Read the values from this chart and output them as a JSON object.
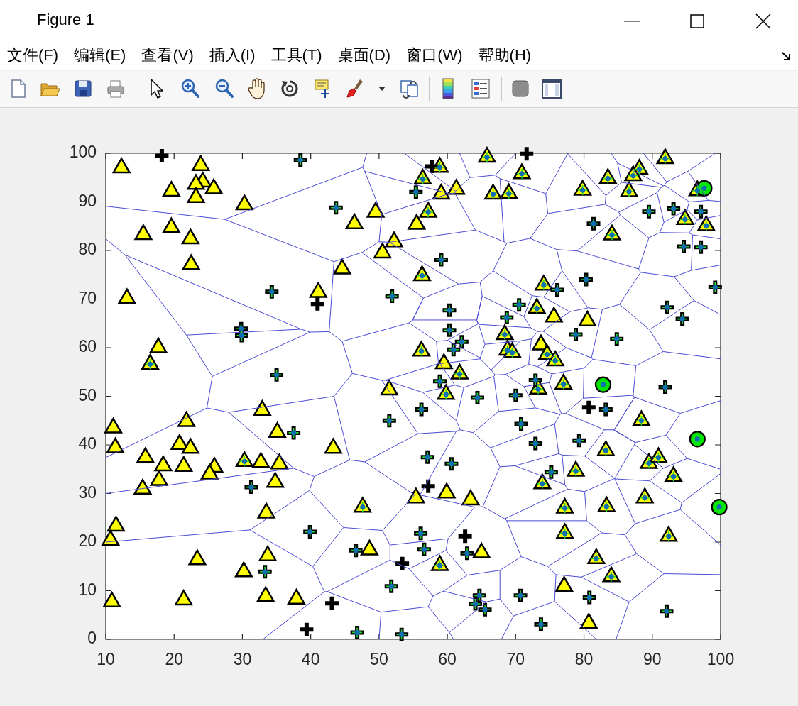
{
  "chart_data": {
    "type": "scatter",
    "annotations": [
      "Figure 1",
      "文件(F)",
      "编辑(E)",
      "查看(V)",
      "插入(I)",
      "工具(T)",
      "桌面(D)",
      "窗口(W)",
      "帮助(H)"
    ],
    "xlim": [
      10,
      100
    ],
    "xticks": [
      10,
      20,
      30,
      40,
      50,
      60,
      70,
      80,
      90,
      100
    ],
    "ylim": [
      0,
      100
    ],
    "yticks": [
      0,
      10,
      20,
      30,
      40,
      50,
      60,
      70,
      80,
      90,
      100
    ],
    "series": [
      {
        "marker": "triangle",
        "color": "#ffff00",
        "x": [
          12.3,
          23.9,
          24.2,
          23.2,
          25.8,
          19.6,
          23.2,
          30.3,
          15.5,
          19.6,
          22.4,
          22.5,
          13.1,
          41.1,
          17.7,
          16.5,
          65.8,
          58.9,
          70.9,
          56.4,
          61.3,
          59.1,
          66.7,
          69.0,
          49.5,
          57.2,
          46.4,
          55.5,
          52.2,
          50.5,
          44.6,
          56.3,
          68.4,
          68.8,
          69.5,
          56.2,
          59.5,
          61.8,
          51.5,
          59.8,
          91.9,
          88.1,
          87.2,
          83.5,
          79.8,
          86.6,
          96.6,
          84.1,
          94.8,
          97.9,
          74.1,
          73.1,
          75.6,
          80.5,
          73.7,
          74.6,
          75.8,
          73.3,
          77.0,
          11.1,
          11.4,
          21.8,
          20.8,
          22.4,
          15.8,
          18.4,
          21.4,
          25.9,
          25.2,
          17.8,
          15.4,
          30.3,
          32.7,
          35.4,
          34.8,
          32.9,
          35.1,
          33.5,
          11.5,
          10.7,
          33.7,
          30.2,
          23.4,
          33.4,
          37.9,
          21.4,
          10.9,
          43.3,
          59.9,
          63.4,
          55.4,
          47.6,
          48.6,
          65.0,
          58.9,
          88.4,
          83.2,
          89.5,
          90.9,
          93.1,
          78.8,
          73.9,
          77.2,
          83.3,
          88.9,
          77.2,
          92.4,
          81.8,
          84.0,
          77.1,
          80.7
        ],
        "values": [
          97.0,
          97.5,
          94.1,
          93.6,
          92.7,
          92.2,
          90.9,
          89.4,
          83.3,
          84.7,
          82.4,
          77.1,
          70.1,
          71.4,
          60.0,
          56.6,
          99.2,
          97.1,
          95.8,
          94.7,
          92.6,
          91.6,
          91.6,
          91.7,
          87.9,
          87.9,
          85.5,
          85.4,
          81.8,
          79.5,
          76.2,
          74.8,
          62.7,
          59.5,
          59.0,
          59.3,
          56.7,
          54.6,
          51.3,
          50.4,
          98.9,
          96.7,
          95.4,
          94.8,
          92.4,
          92.1,
          92.3,
          83.2,
          86.4,
          85.1,
          72.9,
          68.1,
          66.3,
          65.5,
          60.6,
          58.6,
          57.3,
          51.5,
          52.5,
          43.5,
          39.4,
          44.8,
          40.1,
          39.3,
          37.4,
          35.7,
          35.6,
          35.4,
          34.0,
          32.7,
          30.9,
          36.6,
          36.4,
          36.1,
          32.3,
          47.1,
          42.6,
          26.0,
          23.3,
          20.4,
          17.2,
          13.9,
          16.4,
          8.8,
          8.3,
          8.1,
          7.7,
          39.3,
          30.1,
          28.7,
          29.1,
          27.2,
          18.4,
          17.8,
          15.2,
          45.0,
          38.8,
          36.2,
          37.4,
          33.5,
          34.6,
          32.0,
          27.0,
          27.3,
          29.1,
          21.8,
          21.2,
          16.6,
          12.9,
          10.9,
          3.3
        ]
      },
      {
        "marker": "cross",
        "color": "#000000",
        "x": [
          18.2,
          57.7,
          71.6,
          41.0,
          39.4,
          43.1,
          57.2,
          62.6,
          53.4,
          80.7,
          38.5,
          34.3,
          29.8,
          29.9,
          35.0,
          55.4,
          43.7,
          59.1,
          51.9,
          70.5,
          60.3,
          68.7,
          60.3,
          62.1,
          60.9,
          58.9,
          64.4,
          70.0,
          81.4,
          89.5,
          93.1,
          97.1,
          94.6,
          97.1,
          99.2,
          80.3,
          76.1,
          78.8,
          84.8,
          92.2,
          94.4,
          72.9,
          91.9,
          31.3,
          37.5,
          39.9,
          33.3,
          56.2,
          51.5,
          70.8,
          72.9,
          57.1,
          60.6,
          56.1,
          46.6,
          56.6,
          62.9,
          51.8,
          64.7,
          64.1,
          65.5,
          70.7,
          46.8,
          53.3,
          83.2,
          79.3,
          75.2,
          80.8,
          92.1,
          73.7
        ],
        "values": [
          99.5,
          97.3,
          99.9,
          69.0,
          2.0,
          7.4,
          31.5,
          21.2,
          15.6,
          47.7,
          98.6,
          71.5,
          63.9,
          62.5,
          54.4,
          92.0,
          88.8,
          78.1,
          70.6,
          68.8,
          67.7,
          66.2,
          63.6,
          61.2,
          59.6,
          53.1,
          49.7,
          50.2,
          85.5,
          88.0,
          88.6,
          88.0,
          80.8,
          80.7,
          72.4,
          74.0,
          71.9,
          62.7,
          61.8,
          68.3,
          65.9,
          53.3,
          51.9,
          31.3,
          42.5,
          22.1,
          13.9,
          47.3,
          45.0,
          44.3,
          40.3,
          37.5,
          36.1,
          21.8,
          18.3,
          18.5,
          17.7,
          10.9,
          9.0,
          7.3,
          6.1,
          9.0,
          1.4,
          1.0,
          47.3,
          40.9,
          34.4,
          8.6,
          5.8,
          3.1
        ]
      },
      {
        "marker": "circle",
        "color": "#00e600",
        "x": [
          97.6,
          82.8,
          96.6,
          99.8
        ],
        "values": [
          92.8,
          52.4,
          41.2,
          27.2
        ]
      },
      {
        "type": "line",
        "color": "#4b4bd6",
        "x": [
          10,
          27.4,
          47.6,
          48.2,
          null,
          27.4,
          43.4,
          42.7,
          39.9,
          38.6,
          12.8,
          10,
          null,
          47.6,
          47.9,
          50.4,
          60.3,
          47.9,
          null,
          12.8,
          21.8,
          38.6,
          null,
          39.9,
          25.6,
          21.8,
          null,
          42.7,
          44.6,
          46.1,
          43.4,
          28,
          24.8,
          25.6,
          null,
          43.4,
          47.5,
          50,
          50.4,
          null,
          44.6,
          54.4,
          54.9,
          56.5,
          47.5,
          null,
          24.8,
          10,
          null,
          28,
          37.5,
          40.5,
          39.8,
          31.1,
          10,
          null,
          43.4,
          45.7,
          40.5,
          null,
          46.1,
          50.4,
          50.9,
          58.7,
          58.4,
          54.4,
          54.9,
          56.5,
          61.6,
          64.8,
          66.7,
          68.7,
          68.3,
          64.1,
          51.5,
          61.6,
          null,
          60.3,
          61.1,
          61.2,
          53.7,
          null,
          50,
          51.5,
          null,
          64.8,
          65.1,
          71.2,
          72.4,
          66.7,
          null,
          68.7,
          72.1,
          74.7,
          83.1,
          85.1,
          85.3,
          79,
          76,
          72.1,
          null,
          68.3,
          67.7,
          67,
          63.3,
          61.8,
          null,
          64.1,
          61.1,
          null,
          71.2,
          72.2,
          64.6,
          64.5,
          64.3,
          65.1,
          64.3,
          54.9,
          null,
          72.4,
          74.1,
          76.8,
          76,
          null,
          64.3,
          64.5,
          60,
          58.4,
          null,
          64.6,
          65.5,
          64.8,
          60,
          null,
          72.2,
          73.2,
          72.3,
          70.7,
          65.5,
          null,
          64.8,
          64.8,
          58.9,
          58.7,
          null,
          58.9,
          61.1,
          56.4,
          50.9,
          null,
          64.8,
          66.4,
          70.7,
          null,
          56.4,
          61.3,
          62.4,
          66.8,
          67.5,
          63.8,
          61.9,
          61.3,
          null,
          61.1,
          62.4,
          null,
          66.8,
          67,
          68.5,
          71.2,
          72.9,
          67.5,
          null,
          61.9,
          61.3,
          55.7,
          50.4,
          null,
          63.8,
          66.3,
          75.7,
          76.5,
          72.9,
          null,
          68.5,
          71.9,
          73.2,
          75.3,
          74.9,
          71.2,
          null,
          67,
          66.4,
          null,
          79,
          88,
          89.5,
          85.3,
          null,
          85.1,
          90.7,
          91.7,
          91.1,
          89.5,
          null,
          83.1,
          83.2,
          77.6,
          74.4,
          67.7,
          null,
          74.7,
          74.4,
          null,
          91.1,
          95.4,
          95.9,
          95.7,
          93.2,
          88.3,
          88,
          null,
          91.7,
          95.1,
          95.4,
          91.8,
          91.6,
          91.3,
          90.7,
          null,
          95.1,
          96.6,
          100,
          null,
          95.4,
          98.2,
          100,
          null,
          91.8,
          92.1,
          88.7,
          null,
          91.6,
          84.9,
          84,
          null,
          91.3,
          85.5,
          84.9,
          null,
          98.2,
          95.2,
          92.1,
          null,
          96.6,
          95.4,
          null,
          88.3,
          85.2,
          82.7,
          80.6,
          76.8,
          null,
          93.2,
          96.1,
          100,
          null,
          95.7,
          100,
          null,
          95.9,
          100,
          null,
          96.1,
          89.6,
          91.6,
          87.6,
          81.3,
          81.1,
          77.4,
          74,
          77.9,
          80.6,
          null,
          82.7,
          81.1,
          null,
          85.2,
          89.6,
          null,
          77.9,
          74.1,
          null,
          74,
          73.2,
          null,
          77.4,
          73.2,
          null,
          91.6,
          100,
          null,
          81.3,
          80,
          75.3,
          null,
          87.6,
          87.2,
          87.4,
          94.1,
          100,
          null,
          71.9,
          72.3,
          null,
          74.9,
          76.7,
          77.3,
          79.9,
          87.2,
          null,
          94.1,
          92,
          87.5,
          84.4,
          87.4,
          84.4,
          83,
          77.3,
          null,
          37.5,
          10,
          null,
          31.1,
          40.3,
          44.8,
          39.8,
          null,
          45.7,
          47.9,
          55.7,
          null,
          40.3,
          42,
          33,
          null,
          44.8,
          50.5,
          55.2,
          47.9,
          null,
          42,
          42.4,
          51.6,
          51.6,
          50.5,
          null,
          61.3,
          56,
          55.2,
          null,
          66.3,
          67.7,
          69.9,
          76.3,
          75.7,
          null,
          76.5,
          76.7,
          null,
          67.7,
          65.2,
          64,
          56,
          null,
          69.9,
          77.2,
          76.8,
          76.3,
          null,
          64,
          60.1,
          51.6,
          null,
          65.2,
          68.4,
          68.7,
          70.8,
          67.7,
          62.9,
          59.8,
          60.1,
          null,
          51.6,
          54.4,
          59.8,
          null,
          42.4,
          50.3,
          57.2,
          57.9,
          54.4,
          null,
          62.9,
          59.4,
          65.7,
          67.7,
          67.7,
          null,
          70.8,
          74.7,
          75.9,
          75.7,
          69.7,
          67.9,
          null,
          68.7,
          80.4,
          80.1,
          77.6,
          77.2,
          null,
          68.4,
          77.6,
          null,
          57.2,
          60.3,
          65.7,
          null,
          57.9,
          59.4,
          null,
          50.3,
          50,
          null,
          67.7,
          69.7,
          null,
          60.3,
          60.9,
          null,
          75.7,
          81.8,
          null,
          75.9,
          79.6,
          86.6,
          84.7,
          null,
          74.7,
          82.6,
          80.4,
          null,
          79.9,
          80,
          null,
          83,
          80.1,
          76.8,
          null,
          84.4,
          87.5,
          87.4,
          84.5,
          80.1,
          null,
          86.6,
          91.7,
          100,
          null,
          79.6,
          87.7,
          86,
          82.6,
          null,
          91.7,
          87.7,
          null,
          63.3,
          61.2,
          null,
          67,
          70,
          null,
          77.6,
          77.6,
          null,
          95.2,
          99.2,
          null,
          85.5,
          83.2,
          null,
          92,
          95.1,
          91.6,
          87.4,
          null,
          91.6,
          89.6,
          84.5,
          84.5,
          80.1,
          null,
          84.5,
          87.5,
          86,
          null,
          89.6,
          94.3,
          100,
          null,
          95.1,
          100,
          null,
          94.3,
          94.1,
          87.5,
          null,
          94.1,
          100
        ],
        "values": [
          89.1,
          86.4,
          97.1,
          100,
          null,
          86.4,
          77.7,
          63.3,
          63.2,
          63.8,
          79.1,
          82.4,
          null,
          97.1,
          96.3,
          87.4,
          91.7,
          96.3,
          null,
          79.1,
          62.6,
          63.8,
          null,
          63.2,
          54.1,
          62.6,
          null,
          63.3,
          61.3,
          54.7,
          50,
          46.7,
          47.6,
          54.1,
          null,
          77.7,
          79.6,
          81.8,
          87.4,
          null,
          61.3,
          65.1,
          65.6,
          70.2,
          79.6,
          null,
          47.6,
          37.4,
          null,
          46.7,
          35.2,
          33.5,
          30.6,
          22.5,
          20,
          null,
          50,
          36.9,
          33.5,
          null,
          54.7,
          53.3,
          53.3,
          56.7,
          61.3,
          65.1,
          65.7,
          70.2,
          73.1,
          73.5,
          75.8,
          81.5,
          81.8,
          84.2,
          81.7,
          73.1,
          null,
          91.7,
          91.8,
          92.2,
          100,
          null,
          81.8,
          81.7,
          null,
          73.5,
          70.6,
          66.4,
          70.7,
          75.8,
          null,
          81.5,
          82.5,
          87.6,
          89.5,
          87.9,
          87.3,
          79.9,
          80.2,
          82.5,
          null,
          81.8,
          94.8,
          95.5,
          95,
          100,
          null,
          84.2,
          91.8,
          null,
          66.4,
          64.1,
          64.8,
          64.9,
          65.6,
          70.6,
          65.7,
          65.7,
          null,
          70.7,
          70.4,
          75.8,
          80.2,
          null,
          65.7,
          64.9,
          61.5,
          61.3,
          null,
          64.8,
          60.7,
          57.9,
          61.5,
          null,
          64.1,
          63.3,
          61.8,
          61.4,
          60.7,
          null,
          57.9,
          57.7,
          56.7,
          56.7,
          null,
          56.7,
          52.3,
          50.8,
          53.3,
          null,
          57.7,
          55.4,
          61.4,
          null,
          50.8,
          45,
          51.8,
          54.1,
          46.9,
          42.5,
          43.1,
          45,
          null,
          52.3,
          51.8,
          null,
          54.1,
          54.4,
          54.5,
          52,
          47.6,
          46.9,
          null,
          43.1,
          42.8,
          42.3,
          53.3,
          null,
          42.5,
          39.4,
          44.3,
          46.3,
          47.6,
          null,
          54.5,
          56.6,
          56.1,
          54.6,
          52.8,
          52,
          null,
          54.4,
          55.4,
          null,
          79.9,
          76.2,
          82.6,
          87.3,
          null,
          87.9,
          91.9,
          85.8,
          83.7,
          82.6,
          null,
          89.5,
          91.3,
          99.9,
          91.7,
          94.8,
          null,
          87.6,
          91.7,
          null,
          83.7,
          83.6,
          83.2,
          75.9,
          74.6,
          75.5,
          76.2,
          null,
          85.8,
          88.4,
          90,
          93.4,
          93.3,
          93,
          91.9,
          null,
          88.4,
          86.3,
          87.2,
          null,
          90,
          90.3,
          90.1,
          null,
          93.4,
          94.1,
          100,
          null,
          93.3,
          98,
          100,
          null,
          93,
          94,
          98,
          null,
          90.3,
          96.3,
          94.1,
          null,
          86.3,
          83.6,
          null,
          75.5,
          68.9,
          67.9,
          68.2,
          75.8,
          null,
          74.6,
          69.7,
          66.8,
          null,
          75.9,
          77,
          null,
          83.2,
          82.4,
          null,
          69.7,
          63.7,
          59.2,
          56.3,
          57.6,
          57.9,
          60,
          63.4,
          67.4,
          68.2,
          null,
          67.9,
          57.9,
          null,
          68.9,
          63.7,
          null,
          67.4,
          70.4,
          null,
          63.4,
          63.3,
          null,
          60,
          56.1,
          null,
          59.2,
          57.7,
          null,
          57.6,
          55.8,
          54.6,
          null,
          56.3,
          50.2,
          49.8,
          46.5,
          49.1,
          null,
          56.6,
          61.8,
          null,
          52.8,
          46.4,
          46.5,
          49.6,
          50.2,
          null,
          46.5,
          42,
          40.5,
          43,
          49.8,
          43.1,
          43.1,
          46.5,
          null,
          35.2,
          30,
          null,
          22.5,
          15,
          23,
          30.6,
          null,
          36.9,
          36.5,
          42.3,
          null,
          15,
          9.8,
          0,
          null,
          23,
          22.4,
          29.7,
          36.5,
          null,
          9.8,
          9.8,
          16.3,
          19.4,
          22.4,
          null,
          42.8,
          29.7,
          29.7,
          null,
          39.4,
          35.5,
          35.7,
          38.2,
          44.3,
          null,
          46.3,
          46.4,
          null,
          35.5,
          27.3,
          27.2,
          29.7,
          null,
          35.7,
          31.8,
          37.9,
          38.2,
          null,
          27.2,
          20.7,
          19.4,
          null,
          27.3,
          24.8,
          24.4,
          17,
          14.2,
          13.2,
          18.3,
          20.7,
          null,
          16.3,
          14.5,
          18.3,
          null,
          9.8,
          5.6,
          6.7,
          8.9,
          14.5,
          null,
          13.2,
          9.9,
          7.7,
          8.3,
          14.2,
          null,
          17,
          15,
          13.3,
          7.8,
          4.8,
          0,
          null,
          24.4,
          24.4,
          30.4,
          30.9,
          31.8,
          null,
          24.8,
          30.9,
          null,
          6.7,
          1.4,
          7.7,
          null,
          8.9,
          9.9,
          null,
          5.6,
          0,
          null,
          8.3,
          4.8,
          null,
          1.4,
          0,
          null,
          7.8,
          0,
          null,
          13.3,
          12.8,
          7.7,
          0,
          null,
          15,
          21.9,
          24.4,
          null,
          49.6,
          55.8,
          null,
          43.1,
          37.7,
          37.9,
          null,
          43.1,
          40.5,
          40.1,
          33.1,
          37.7,
          null,
          7.7,
          13.5,
          13.3,
          null,
          12.8,
          17.6,
          21.5,
          21.9,
          null,
          13.5,
          17.6,
          null,
          95,
          92.2,
          null,
          95.5,
          100,
          null,
          99.9,
          100,
          null,
          96.3,
          100,
          null,
          94,
          91.3,
          null,
          42,
          37.2,
          35.2,
          40.1,
          null,
          35.2,
          32.6,
          33,
          33.1,
          30.4,
          null,
          33,
          23.8,
          21.5,
          null,
          32.6,
          28.1,
          34.1,
          null,
          37.2,
          35,
          null,
          28.1,
          26.7,
          23.8,
          null,
          26.7,
          19.4
        ]
      },
      {
        "marker": "cross",
        "color": "#22dd22",
        "x": [
          38.5,
          34.3,
          29.8,
          29.9,
          35.0,
          55.4,
          43.7,
          59.1,
          51.9,
          70.5,
          60.3,
          68.7,
          60.3,
          62.1,
          60.9,
          58.9,
          64.4,
          70.0,
          81.4,
          89.5,
          93.1,
          97.1,
          94.6,
          97.1,
          99.2,
          80.3,
          76.1,
          78.8,
          84.8,
          92.2,
          94.4,
          72.9,
          91.9,
          31.3,
          37.5,
          39.9,
          33.3,
          56.2,
          51.5,
          70.8,
          72.9,
          57.1,
          60.6,
          56.1,
          46.6,
          56.6,
          62.9,
          51.8,
          64.7,
          64.1,
          65.5,
          70.7,
          46.8,
          53.3,
          83.2,
          79.3,
          75.2,
          80.8,
          92.1,
          73.7,
          16.5,
          65.8,
          58.9,
          70.9,
          56.4,
          66.7,
          69.0,
          57.2,
          56.3,
          68.4,
          68.8,
          69.5,
          56.2,
          61.8,
          59.8,
          91.9,
          88.1,
          87.2,
          83.5,
          79.8,
          86.6,
          96.6,
          84.1,
          94.8,
          97.9,
          74.1,
          73.1,
          74.6,
          75.8,
          73.3,
          77.0,
          30.3,
          47.6,
          58.9,
          88.4,
          83.2,
          89.5,
          90.9,
          93.1,
          78.8,
          73.9,
          77.2,
          83.3,
          88.9,
          77.2,
          92.4,
          81.8,
          84.0,
          97.6,
          82.8,
          96.6,
          99.8
        ],
        "values": [
          98.6,
          71.5,
          63.9,
          62.5,
          54.4,
          92.0,
          88.8,
          78.1,
          70.6,
          68.8,
          67.7,
          66.2,
          63.6,
          61.2,
          59.6,
          53.1,
          49.7,
          50.2,
          85.5,
          88.0,
          88.6,
          88.0,
          80.8,
          80.7,
          72.4,
          74.0,
          71.9,
          62.7,
          61.8,
          68.3,
          65.9,
          53.3,
          51.9,
          31.3,
          42.5,
          22.1,
          13.9,
          47.3,
          45.0,
          44.3,
          40.3,
          37.5,
          36.1,
          21.8,
          18.3,
          18.5,
          17.7,
          10.9,
          9.0,
          7.3,
          6.1,
          9.0,
          1.4,
          1.0,
          47.3,
          40.9,
          34.4,
          8.6,
          5.8,
          3.1,
          56.6,
          99.2,
          97.1,
          95.8,
          94.7,
          91.6,
          91.7,
          87.9,
          74.8,
          62.7,
          59.5,
          59.0,
          59.3,
          54.6,
          50.4,
          98.9,
          96.7,
          95.4,
          94.8,
          92.4,
          92.1,
          92.3,
          83.2,
          86.4,
          85.1,
          72.9,
          68.1,
          58.6,
          57.3,
          51.5,
          52.5,
          36.6,
          27.2,
          15.2,
          45.0,
          38.8,
          36.2,
          37.4,
          33.5,
          34.6,
          32.0,
          27.0,
          27.3,
          29.1,
          21.8,
          21.2,
          16.6,
          12.9,
          92.8,
          52.4,
          41.2,
          27.2
        ]
      },
      {
        "marker": "circle",
        "color": "#0f6fb0",
        "x": [
          38.5,
          34.3,
          29.8,
          29.9,
          35.0,
          55.4,
          43.7,
          59.1,
          51.9,
          70.5,
          60.3,
          68.7,
          60.3,
          62.1,
          60.9,
          58.9,
          64.4,
          70.0,
          81.4,
          89.5,
          93.1,
          97.1,
          94.6,
          97.1,
          99.2,
          80.3,
          76.1,
          78.8,
          84.8,
          92.2,
          94.4,
          72.9,
          91.9,
          31.3,
          37.5,
          39.9,
          33.3,
          56.2,
          51.5,
          70.8,
          72.9,
          57.1,
          60.6,
          56.1,
          46.6,
          56.6,
          62.9,
          51.8,
          64.7,
          64.1,
          65.5,
          70.7,
          46.8,
          53.3,
          83.2,
          79.3,
          75.2,
          80.8,
          92.1,
          73.7,
          16.5,
          65.8,
          58.9,
          70.9,
          56.4,
          66.7,
          69.0,
          57.2,
          56.3,
          68.4,
          68.8,
          69.5,
          56.2,
          61.8,
          59.8,
          91.9,
          88.1,
          87.2,
          83.5,
          79.8,
          86.6,
          96.6,
          84.1,
          94.8,
          97.9,
          74.1,
          73.1,
          74.6,
          75.8,
          73.3,
          77.0,
          30.3,
          47.6,
          58.9,
          88.4,
          83.2,
          89.5,
          90.9,
          93.1,
          78.8,
          73.9,
          77.2,
          83.3,
          88.9,
          77.2,
          92.4,
          81.8,
          84.0,
          97.6,
          82.8,
          96.6,
          99.8
        ],
        "values": [
          98.6,
          71.5,
          63.9,
          62.5,
          54.4,
          92.0,
          88.8,
          78.1,
          70.6,
          68.8,
          67.7,
          66.2,
          63.6,
          61.2,
          59.6,
          53.1,
          49.7,
          50.2,
          85.5,
          88.0,
          88.6,
          88.0,
          80.8,
          80.7,
          72.4,
          74.0,
          71.9,
          62.7,
          61.8,
          68.3,
          65.9,
          53.3,
          51.9,
          31.3,
          42.5,
          22.1,
          13.9,
          47.3,
          45.0,
          44.3,
          40.3,
          37.5,
          36.1,
          21.8,
          18.3,
          18.5,
          17.7,
          10.9,
          9.0,
          7.3,
          6.1,
          9.0,
          1.4,
          1.0,
          47.3,
          40.9,
          34.4,
          8.6,
          5.8,
          3.1,
          56.6,
          99.2,
          97.1,
          95.8,
          94.7,
          91.6,
          91.7,
          87.9,
          74.8,
          62.7,
          59.5,
          59.0,
          59.3,
          54.6,
          50.4,
          98.9,
          96.7,
          95.4,
          94.8,
          92.4,
          92.1,
          92.3,
          83.2,
          86.4,
          85.1,
          72.9,
          68.1,
          58.6,
          57.3,
          51.5,
          52.5,
          36.6,
          27.2,
          15.2,
          45.0,
          38.8,
          36.2,
          37.4,
          33.5,
          34.6,
          32.0,
          27.0,
          27.3,
          29.1,
          21.8,
          21.2,
          16.6,
          12.9,
          92.8,
          52.4,
          41.2,
          27.2
        ]
      }
    ]
  }
}
